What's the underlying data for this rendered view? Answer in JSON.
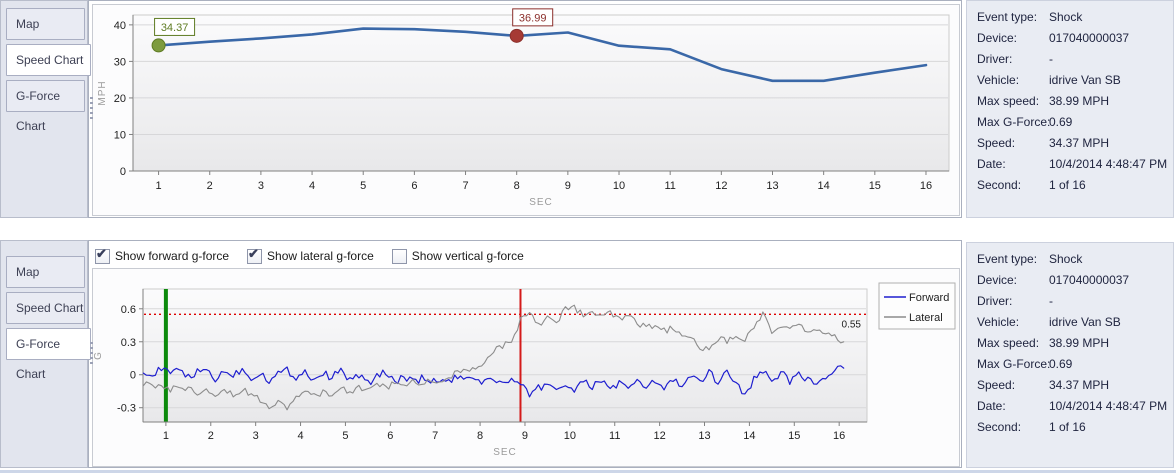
{
  "top_section": {
    "tabs": [
      {
        "label": "Map",
        "selected": false
      },
      {
        "label": "Speed Chart",
        "selected": true
      },
      {
        "label": "G-Force Chart",
        "selected": false
      }
    ]
  },
  "bottom_section": {
    "tabs": [
      {
        "label": "Map",
        "selected": false
      },
      {
        "label": "Speed Chart",
        "selected": false
      },
      {
        "label": "G-Force Chart",
        "selected": true
      }
    ],
    "checkboxes": [
      {
        "label": "Show forward g-force",
        "checked": true
      },
      {
        "label": "Show lateral g-force",
        "checked": true
      },
      {
        "label": "Show vertical g-force",
        "checked": false
      }
    ]
  },
  "info_panel": {
    "rows": [
      {
        "label": "Event type:",
        "value": "Shock"
      },
      {
        "label": "Device:",
        "value": "017040000037"
      },
      {
        "label": "Driver:",
        "value": "-"
      },
      {
        "label": "Vehicle:",
        "value": "idrive Van SB"
      },
      {
        "label": "Max speed:",
        "value": "38.99 MPH"
      },
      {
        "label": "Max G-Force:",
        "value": "0.69"
      },
      {
        "label": "Speed:",
        "value": "34.37 MPH"
      },
      {
        "label": "Date:",
        "value": "10/4/2014 4:48:47 PM"
      },
      {
        "label": "Second:",
        "value": "1 of 16"
      }
    ]
  },
  "colors": {
    "speed_line": "#3a68a8",
    "forward_line": "#1e1ecf",
    "lateral_line": "#8c8c8c",
    "event_green": "#0c8a0c",
    "event_red": "#d41a1a",
    "threshold_red": "#dd0000"
  },
  "chart_data": [
    {
      "type": "line",
      "title": "Speed Chart",
      "xlabel": "SEC",
      "ylabel": "MPH",
      "xlim": [
        0.5,
        16.45
      ],
      "ylim": [
        0,
        42.7
      ],
      "xticks": [
        1,
        2,
        3,
        4,
        5,
        6,
        7,
        8,
        9,
        10,
        11,
        12,
        13,
        14,
        15,
        16
      ],
      "yticks": [
        0,
        10,
        20,
        30,
        40
      ],
      "x": [
        1,
        2,
        3,
        4,
        5,
        6,
        7,
        8,
        9,
        10,
        11,
        12,
        13,
        14,
        15,
        16
      ],
      "series": [
        {
          "name": "Speed",
          "color": "#3a68a8",
          "width": 2.6,
          "values": [
            34.37,
            35.4,
            36.3,
            37.4,
            38.99,
            38.8,
            38.1,
            36.99,
            37.9,
            34.3,
            33.3,
            27.9,
            24.7,
            24.7,
            26.9,
            29.0
          ]
        }
      ],
      "markers": [
        {
          "x": 1,
          "value": 34.37,
          "label": "34.37",
          "fill": "#7d9b3f",
          "stroke": "#5e7b22",
          "text_color": "#5e7b22"
        },
        {
          "x": 8,
          "value": 36.99,
          "label": "36.99",
          "fill": "#a63a34",
          "stroke": "#8b2f2b",
          "text_color": "#8b2f2b"
        }
      ]
    },
    {
      "type": "line",
      "title": "G-Force Chart",
      "xlabel": "SEC",
      "ylabel": "G",
      "xlim": [
        0.49,
        16.62
      ],
      "ylim": [
        -0.43,
        0.78
      ],
      "xticks": [
        1,
        2,
        3,
        4,
        5,
        6,
        7,
        8,
        9,
        10,
        11,
        12,
        13,
        14,
        15,
        16
      ],
      "yticks": [
        -0.3,
        0,
        0.3,
        0.6
      ],
      "x_start": 0.5,
      "x_step": 0.2,
      "series": [
        {
          "name": "Forward",
          "color": "#1e1ecf",
          "width": 1.2,
          "noise": 0.035,
          "values": [
            0.05,
            -0.02,
            0.06,
            0.0,
            0.07,
            -0.03,
            0.02,
            0.05,
            -0.04,
            0.03,
            0.0,
            0.05,
            -0.03,
            0.02,
            -0.05,
            0.01,
            0.04,
            -0.02,
            0.03,
            -0.04,
            0.01,
            -0.02,
            0.04,
            -0.05,
            0.0,
            -0.08,
            -0.02,
            0.03,
            -0.06,
            -0.02,
            -0.07,
            -0.03,
            -0.08,
            -0.04,
            -0.07,
            -0.02,
            -0.06,
            -0.03,
            -0.07,
            -0.04,
            -0.08,
            -0.05,
            -0.1,
            -0.18,
            -0.12,
            -0.08,
            -0.13,
            -0.09,
            -0.14,
            -0.07,
            -0.11,
            -0.05,
            -0.12,
            -0.08,
            -0.13,
            -0.07,
            -0.11,
            -0.06,
            -0.12,
            -0.05,
            -0.1,
            -0.02,
            -0.08,
            0.02,
            -0.06,
            0.04,
            -0.08,
            -0.18,
            -0.04,
            0.03,
            -0.05,
            0.02,
            -0.06,
            0.01,
            -0.04,
            -0.1,
            -0.02,
            0.04,
            0.06
          ]
        },
        {
          "name": "Lateral",
          "color": "#8c8c8c",
          "width": 1.1,
          "noise": 0.03,
          "values": [
            -0.08,
            -0.12,
            -0.09,
            -0.14,
            -0.1,
            -0.13,
            -0.16,
            -0.12,
            -0.17,
            -0.13,
            -0.18,
            -0.14,
            -0.17,
            -0.22,
            -0.28,
            -0.25,
            -0.29,
            -0.22,
            -0.16,
            -0.2,
            -0.15,
            -0.18,
            -0.13,
            -0.16,
            -0.11,
            -0.14,
            -0.09,
            -0.12,
            -0.07,
            -0.1,
            -0.06,
            -0.09,
            -0.05,
            -0.07,
            -0.02,
            0.02,
            0.05,
            0.03,
            0.1,
            0.22,
            0.26,
            0.3,
            0.5,
            0.58,
            0.46,
            0.52,
            0.48,
            0.6,
            0.62,
            0.53,
            0.57,
            0.52,
            0.56,
            0.5,
            0.53,
            0.46,
            0.43,
            0.45,
            0.4,
            0.42,
            0.36,
            0.33,
            0.25,
            0.22,
            0.33,
            0.3,
            0.35,
            0.32,
            0.45,
            0.55,
            0.4,
            0.44,
            0.41,
            0.45,
            0.39,
            0.42,
            0.37,
            0.34,
            0.3
          ]
        }
      ],
      "event_lines": [
        {
          "x": 1,
          "color": "#0c8a0c",
          "width": 4
        },
        {
          "x": 8.9,
          "color": "#d41a1a",
          "width": 2
        }
      ],
      "threshold": {
        "value": 0.55,
        "label": "0.55",
        "color": "#dd0000"
      },
      "legend": {
        "position": "right"
      }
    }
  ]
}
